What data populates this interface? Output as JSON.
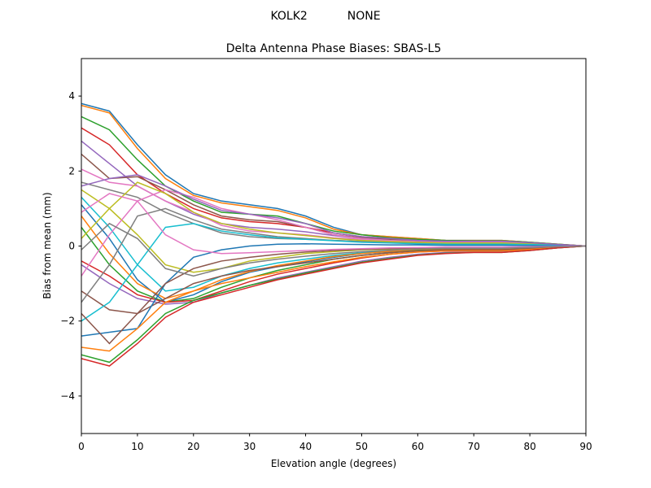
{
  "chart_data": {
    "type": "line",
    "suptitle": "KOLK2           NONE",
    "title": "Delta Antenna Phase Biases: SBAS-L5",
    "xlabel": "Elevation angle (degrees)",
    "ylabel": "Bias from mean (mm)",
    "xlim": [
      0,
      90
    ],
    "ylim": [
      -5,
      5
    ],
    "xticks": [
      0,
      10,
      20,
      30,
      40,
      50,
      60,
      70,
      80,
      90
    ],
    "yticks": [
      -4,
      -2,
      0,
      2,
      4
    ],
    "ytick_labels": [
      "−4",
      "−2",
      "0",
      "2",
      "4"
    ],
    "grid": false,
    "legend": "none",
    "colors": [
      "#1f77b4",
      "#ff7f0e",
      "#2ca02c",
      "#d62728",
      "#9467bd",
      "#8c564b",
      "#e377c2",
      "#7f7f7f",
      "#bcbd22",
      "#17becf"
    ],
    "x": [
      0,
      5,
      10,
      15,
      20,
      25,
      30,
      35,
      40,
      45,
      50,
      55,
      60,
      65,
      70,
      75,
      80,
      85,
      90
    ],
    "series": [
      {
        "values": [
          3.8,
          3.6,
          2.7,
          1.9,
          1.4,
          1.2,
          1.1,
          1.0,
          0.8,
          0.5,
          0.3,
          0.25,
          0.2,
          0.15,
          0.15,
          0.15,
          0.1,
          0.05,
          0
        ]
      },
      {
        "values": [
          3.75,
          3.55,
          2.6,
          1.8,
          1.35,
          1.15,
          1.05,
          0.95,
          0.75,
          0.45,
          0.3,
          0.25,
          0.2,
          0.15,
          0.15,
          0.15,
          0.1,
          0.05,
          0
        ]
      },
      {
        "values": [
          3.45,
          3.1,
          2.3,
          1.6,
          1.2,
          0.9,
          0.85,
          0.8,
          0.6,
          0.4,
          0.3,
          0.22,
          0.18,
          0.15,
          0.14,
          0.14,
          0.1,
          0.05,
          0
        ]
      },
      {
        "values": [
          3.15,
          2.7,
          1.9,
          1.4,
          1.0,
          0.75,
          0.65,
          0.6,
          0.5,
          0.35,
          0.25,
          0.2,
          0.15,
          0.12,
          0.12,
          0.12,
          0.09,
          0.04,
          0
        ]
      },
      {
        "values": [
          2.8,
          2.2,
          1.6,
          1.2,
          0.85,
          0.6,
          0.5,
          0.45,
          0.38,
          0.28,
          0.2,
          0.16,
          0.13,
          0.11,
          0.11,
          0.11,
          0.08,
          0.04,
          0
        ]
      },
      {
        "values": [
          2.45,
          1.8,
          1.85,
          1.5,
          1.1,
          0.8,
          0.7,
          0.65,
          0.5,
          0.3,
          0.22,
          0.18,
          0.14,
          0.12,
          0.12,
          0.12,
          0.09,
          0.04,
          0
        ]
      },
      {
        "values": [
          2.05,
          1.7,
          1.6,
          1.2,
          0.9,
          0.55,
          0.4,
          0.35,
          0.3,
          0.22,
          0.18,
          0.14,
          0.11,
          0.1,
          0.1,
          0.1,
          0.07,
          0.03,
          0
        ]
      },
      {
        "values": [
          1.7,
          1.5,
          1.3,
          0.9,
          0.6,
          0.35,
          0.25,
          0.2,
          0.18,
          0.15,
          0.12,
          0.1,
          0.08,
          0.07,
          0.07,
          0.07,
          0.05,
          0.02,
          0
        ]
      },
      {
        "values": [
          1.5,
          1.0,
          0.3,
          -0.5,
          -0.7,
          -0.6,
          -0.4,
          -0.3,
          -0.2,
          -0.15,
          -0.1,
          -0.08,
          -0.06,
          -0.05,
          -0.05,
          -0.05,
          -0.03,
          -0.01,
          0
        ]
      },
      {
        "values": [
          1.3,
          0.5,
          -0.5,
          -1.2,
          -1.1,
          -0.8,
          -0.6,
          -0.45,
          -0.35,
          -0.25,
          -0.18,
          -0.12,
          -0.09,
          -0.07,
          -0.07,
          -0.07,
          -0.05,
          -0.02,
          0
        ]
      },
      {
        "values": [
          1.1,
          0.2,
          -0.9,
          -1.5,
          -1.3,
          -0.95,
          -0.7,
          -0.55,
          -0.42,
          -0.3,
          -0.2,
          -0.15,
          -0.1,
          -0.08,
          -0.08,
          -0.08,
          -0.05,
          -0.02,
          0
        ]
      },
      {
        "values": [
          0.8,
          -0.2,
          -1.0,
          -1.4,
          -1.2,
          -0.9,
          -0.68,
          -0.52,
          -0.4,
          -0.28,
          -0.2,
          -0.14,
          -0.1,
          -0.08,
          -0.08,
          -0.08,
          -0.05,
          -0.02,
          0
        ]
      },
      {
        "values": [
          0.5,
          -0.5,
          -1.2,
          -1.5,
          -1.4,
          -1.1,
          -0.85,
          -0.65,
          -0.5,
          -0.35,
          -0.25,
          -0.18,
          -0.12,
          -0.1,
          -0.1,
          -0.1,
          -0.07,
          -0.03,
          0
        ]
      },
      {
        "values": [
          -0.4,
          -0.8,
          -1.3,
          -1.5,
          -1.45,
          -1.2,
          -0.95,
          -0.75,
          -0.6,
          -0.45,
          -0.32,
          -0.22,
          -0.16,
          -0.13,
          -0.13,
          -0.13,
          -0.09,
          -0.04,
          0
        ]
      },
      {
        "values": [
          -0.5,
          -1.0,
          -1.4,
          -1.55,
          -1.5,
          -1.25,
          -1.05,
          -0.85,
          -0.7,
          -0.55,
          -0.4,
          -0.3,
          -0.22,
          -0.17,
          -0.16,
          -0.16,
          -0.11,
          -0.05,
          0
        ]
      },
      {
        "values": [
          -1.2,
          -1.7,
          -1.8,
          -1.4,
          -1.0,
          -0.8,
          -0.65,
          -0.55,
          -0.45,
          -0.35,
          -0.25,
          -0.18,
          -0.13,
          -0.1,
          -0.1,
          -0.1,
          -0.07,
          -0.03,
          0
        ]
      },
      {
        "values": [
          -0.8,
          0.3,
          1.2,
          1.5,
          1.3,
          1.0,
          0.85,
          0.7,
          0.5,
          0.3,
          0.2,
          0.15,
          0.12,
          0.1,
          0.1,
          0.1,
          0.07,
          0.03,
          0
        ]
      },
      {
        "values": [
          -1.5,
          -0.5,
          0.8,
          1.0,
          0.7,
          0.45,
          0.35,
          0.25,
          0.2,
          0.15,
          0.12,
          0.1,
          0.08,
          0.07,
          0.07,
          0.07,
          0.05,
          0.02,
          0
        ]
      },
      {
        "values": [
          0.2,
          1.0,
          1.7,
          1.4,
          0.9,
          0.6,
          0.45,
          0.35,
          0.28,
          0.2,
          0.15,
          0.12,
          0.1,
          0.08,
          0.08,
          0.08,
          0.06,
          0.03,
          0
        ]
      },
      {
        "values": [
          -2.0,
          -1.5,
          -0.5,
          0.5,
          0.6,
          0.4,
          0.3,
          0.22,
          0.18,
          0.14,
          0.1,
          0.08,
          0.06,
          0.05,
          0.05,
          0.05,
          0.04,
          0.02,
          0
        ]
      },
      {
        "values": [
          -2.4,
          -2.3,
          -2.2,
          -1.0,
          -0.3,
          -0.1,
          0,
          0.05,
          0.06,
          0.05,
          0.04,
          0.03,
          0.03,
          0.02,
          0.02,
          0.02,
          0.01,
          0,
          0
        ]
      },
      {
        "values": [
          -2.7,
          -2.8,
          -2.2,
          -1.5,
          -1.2,
          -1.0,
          -0.85,
          -0.7,
          -0.55,
          -0.42,
          -0.3,
          -0.22,
          -0.16,
          -0.13,
          -0.13,
          -0.13,
          -0.09,
          -0.04,
          0
        ]
      },
      {
        "values": [
          -2.9,
          -3.1,
          -2.5,
          -1.8,
          -1.45,
          -1.25,
          -1.05,
          -0.88,
          -0.72,
          -0.58,
          -0.43,
          -0.33,
          -0.24,
          -0.19,
          -0.17,
          -0.17,
          -0.12,
          -0.05,
          0
        ]
      },
      {
        "values": [
          -3.0,
          -3.2,
          -2.6,
          -1.9,
          -1.5,
          -1.3,
          -1.1,
          -0.9,
          -0.75,
          -0.6,
          -0.45,
          -0.35,
          -0.25,
          -0.2,
          -0.17,
          -0.17,
          -0.12,
          -0.05,
          0
        ]
      },
      {
        "values": [
          1.6,
          1.8,
          1.9,
          1.6,
          1.25,
          0.95,
          0.85,
          0.75,
          0.6,
          0.35,
          0.25,
          0.2,
          0.15,
          0.13,
          0.13,
          0.13,
          0.09,
          0.04,
          0
        ]
      },
      {
        "values": [
          -1.8,
          -2.6,
          -1.8,
          -1.0,
          -0.6,
          -0.4,
          -0.3,
          -0.22,
          -0.16,
          -0.12,
          -0.09,
          -0.07,
          -0.05,
          -0.04,
          -0.04,
          -0.04,
          -0.03,
          -0.01,
          0
        ]
      },
      {
        "values": [
          0.9,
          1.4,
          1.2,
          0.3,
          -0.1,
          -0.2,
          -0.18,
          -0.15,
          -0.12,
          -0.09,
          -0.07,
          -0.05,
          -0.04,
          -0.03,
          -0.03,
          -0.03,
          -0.02,
          -0.01,
          0
        ]
      },
      {
        "values": [
          -0.1,
          0.6,
          0.2,
          -0.6,
          -0.8,
          -0.6,
          -0.45,
          -0.35,
          -0.27,
          -0.2,
          -0.15,
          -0.11,
          -0.08,
          -0.06,
          -0.06,
          -0.06,
          -0.04,
          -0.02,
          0
        ]
      }
    ]
  }
}
